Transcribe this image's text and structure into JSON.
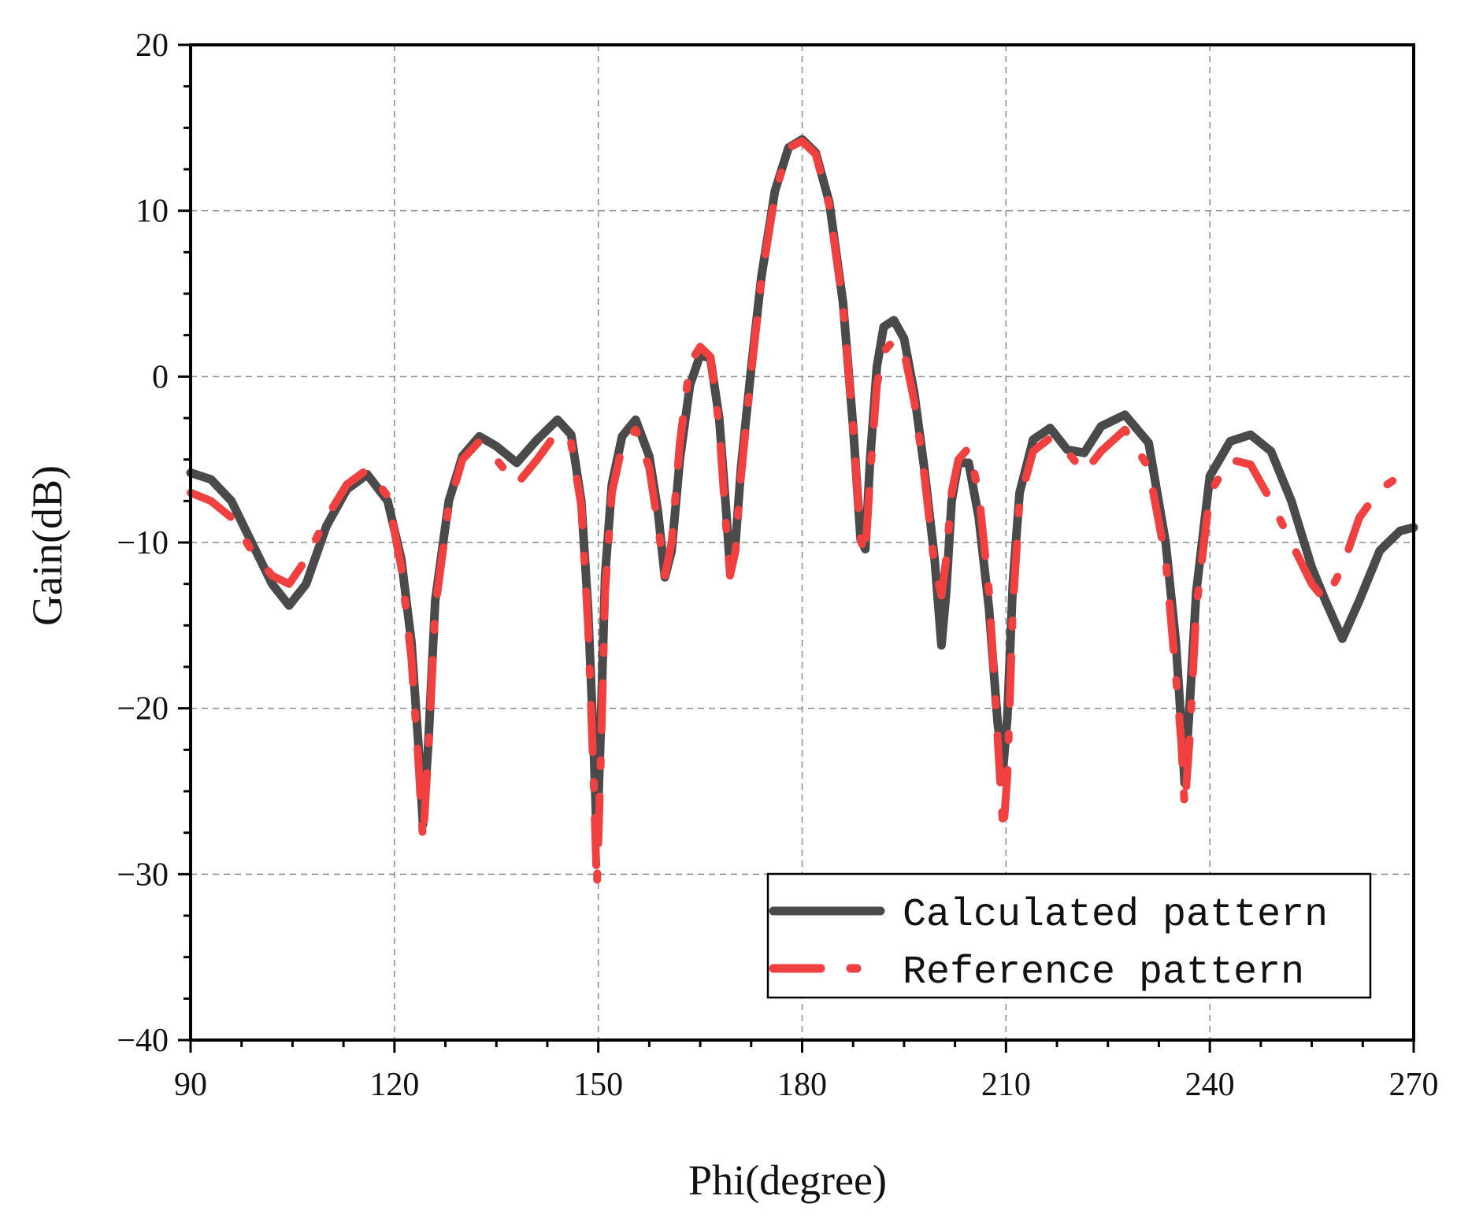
{
  "chart_data": {
    "type": "line",
    "title": "",
    "xlabel": "Phi(degree)",
    "ylabel": "Gain(dB)",
    "xlim": [
      90,
      270
    ],
    "ylim": [
      -40,
      20
    ],
    "xticks": [
      90,
      120,
      150,
      180,
      210,
      240,
      270
    ],
    "yticks": [
      20,
      10,
      0,
      -10,
      -20,
      -30,
      -40
    ],
    "xtick_labels": [
      "90",
      "120",
      "150",
      "180",
      "210",
      "240",
      "270"
    ],
    "ytick_labels": [
      "20",
      "10",
      "0",
      "−10",
      "−20",
      "−30",
      "−40"
    ],
    "grid": true,
    "legend_position": "bottom-right",
    "series": [
      {
        "name": "Calculated pattern",
        "color": "#4a4a4a",
        "style": "solid",
        "x": [
          90,
          93,
          96,
          99,
          102,
          104.5,
          107,
          110,
          113,
          116,
          119,
          121,
          122.5,
          123.5,
          124.2,
          125,
          126,
          128,
          130,
          132.5,
          135,
          138,
          141,
          144,
          146,
          147.5,
          148.5,
          149.3,
          149.8,
          150.3,
          151,
          152,
          153.5,
          155.5,
          157.5,
          158.8,
          159.8,
          160.8,
          162,
          163.5,
          165,
          166.5,
          167.8,
          168.8,
          169.4,
          170.2,
          171,
          172.5,
          174,
          176,
          178,
          180,
          182,
          184,
          186,
          187.5,
          188.6,
          189.3,
          190,
          191,
          192,
          193.5,
          195,
          196.5,
          198,
          199.5,
          200.5,
          201.2,
          202,
          203,
          204.5,
          206,
          207.5,
          208.8,
          209.6,
          210.2,
          211,
          212,
          214,
          216.5,
          219,
          221.5,
          224,
          227.5,
          231,
          233.5,
          235,
          235.8,
          236.3,
          237,
          238,
          240,
          243,
          246,
          249,
          252,
          255,
          257,
          259.5,
          262,
          265,
          268,
          270
        ],
        "y": [
          -5.8,
          -6.2,
          -7.5,
          -10,
          -12.5,
          -13.8,
          -12.5,
          -9,
          -6.8,
          -5.9,
          -7.5,
          -11,
          -16,
          -22,
          -27,
          -22,
          -13.5,
          -7.5,
          -4.8,
          -3.6,
          -4.2,
          -5.2,
          -3.8,
          -2.6,
          -3.5,
          -7.5,
          -14,
          -22,
          -28,
          -22,
          -12,
          -6.5,
          -3.6,
          -2.6,
          -4.8,
          -8.2,
          -12.1,
          -10.5,
          -5,
          -0.5,
          1.3,
          1.1,
          -2.5,
          -8,
          -11.6,
          -10,
          -5.5,
          0.5,
          6,
          11.2,
          13.8,
          14.3,
          13.5,
          10.5,
          4.5,
          -3,
          -9.8,
          -10.4,
          -5,
          0.6,
          3,
          3.4,
          2.3,
          -1,
          -5.6,
          -11,
          -16.2,
          -13,
          -7.5,
          -5.2,
          -5.2,
          -8.5,
          -14,
          -21,
          -23.5,
          -20.5,
          -12.5,
          -7,
          -3.8,
          -3.1,
          -4.4,
          -4.6,
          -3,
          -2.3,
          -4,
          -10,
          -16,
          -21,
          -24.5,
          -20,
          -13,
          -6,
          -3.9,
          -3.5,
          -4.5,
          -7.5,
          -11.5,
          -13.5,
          -15.8,
          -13.5,
          -10.5,
          -9.3,
          -9.1
        ]
      },
      {
        "name": "Reference pattern",
        "color": "#f04040",
        "style": "dash-dot",
        "x": [
          90,
          93,
          96,
          99,
          102,
          104.5,
          107,
          110,
          113,
          116,
          119,
          121,
          122.5,
          123.5,
          124.2,
          125,
          126,
          128,
          130,
          132.5,
          135,
          138,
          141,
          144,
          146,
          147.5,
          148.5,
          149.3,
          149.8,
          150.3,
          151,
          152,
          153.5,
          155.5,
          157.5,
          158.8,
          159.8,
          160.8,
          162,
          163.5,
          165,
          166.5,
          167.8,
          168.8,
          169.4,
          170.2,
          171,
          172.5,
          174,
          176,
          178,
          180,
          182,
          184,
          186,
          187.5,
          188.6,
          189.3,
          190,
          191,
          192,
          193.5,
          195,
          196.5,
          198,
          199.5,
          200.5,
          201.2,
          202,
          203,
          204.5,
          206,
          207.5,
          208.8,
          209.6,
          210.2,
          211,
          212,
          214,
          216.5,
          219,
          221.5,
          224,
          227.5,
          231,
          233.5,
          235,
          235.8,
          236.3,
          237,
          238,
          240,
          243,
          246,
          249,
          252,
          255,
          257,
          259.5,
          262,
          265,
          268,
          270
        ],
        "y": [
          -7,
          -7.5,
          -8.5,
          -10.5,
          -12,
          -12.5,
          -11,
          -8.5,
          -6.5,
          -5.6,
          -7.2,
          -11.5,
          -17,
          -23,
          -28,
          -22.5,
          -14,
          -7.8,
          -5,
          -3.9,
          -5,
          -6.5,
          -5,
          -3.3,
          -4,
          -7.8,
          -15,
          -24,
          -30.8,
          -24,
          -13,
          -7,
          -4.2,
          -3.2,
          -5.5,
          -9,
          -12,
          -10,
          -4,
          0.8,
          1.8,
          1.2,
          -3,
          -9,
          -12,
          -10.5,
          -6,
          0.2,
          5.8,
          11,
          13.8,
          14.2,
          13.4,
          10.3,
          4.3,
          -3,
          -9.8,
          -10.8,
          -6,
          -0.5,
          1.5,
          2.2,
          1.5,
          -1.5,
          -6,
          -11.5,
          -13.2,
          -11,
          -7,
          -5,
          -4.3,
          -7,
          -13,
          -22,
          -27.5,
          -24,
          -14,
          -7.5,
          -4.5,
          -3.7,
          -4.5,
          -5.8,
          -4.5,
          -3.2,
          -5.5,
          -11,
          -18,
          -22,
          -26,
          -22,
          -14,
          -7,
          -5,
          -5.3,
          -7.5,
          -10,
          -12.5,
          -13.5,
          -11.5,
          -8.5,
          -6.8,
          -6,
          -5.5
        ]
      }
    ]
  }
}
